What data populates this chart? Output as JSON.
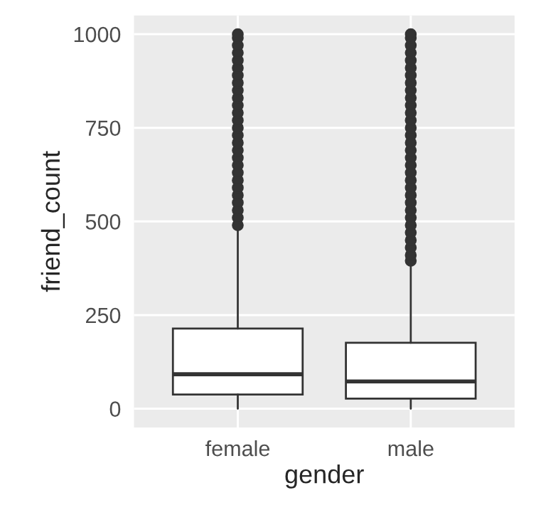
{
  "chart_data": {
    "type": "box",
    "xlabel": "gender",
    "ylabel": "friend_count",
    "categories": [
      "female",
      "male"
    ],
    "boxes": [
      {
        "low": 0,
        "q1": 38,
        "median": 92,
        "q3": 214,
        "high": 480,
        "outliers": [
          490,
          510,
          530,
          550,
          570,
          590,
          610,
          630,
          650,
          670,
          690,
          710,
          730,
          750,
          770,
          790,
          810,
          830,
          850,
          870,
          890,
          910,
          930,
          950,
          970,
          990,
          1000
        ]
      },
      {
        "low": 0,
        "q1": 27,
        "median": 73,
        "q3": 176,
        "high": 385,
        "outliers": [
          395,
          410,
          430,
          450,
          470,
          490,
          510,
          530,
          550,
          570,
          590,
          610,
          630,
          650,
          670,
          690,
          710,
          730,
          750,
          770,
          790,
          810,
          830,
          850,
          870,
          890,
          910,
          930,
          950,
          970,
          990,
          1000
        ]
      }
    ],
    "ylim": [
      -50,
      1050
    ],
    "yticks": [
      0,
      250,
      500,
      750,
      1000
    ],
    "grid": true
  }
}
